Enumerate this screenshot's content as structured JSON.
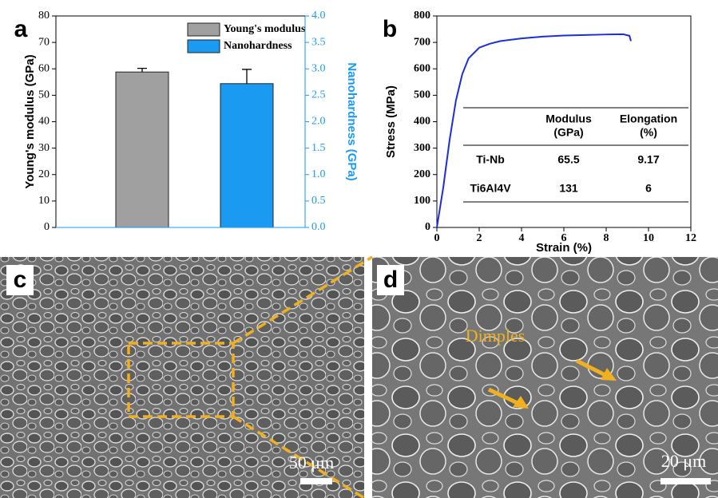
{
  "chart_data": [
    {
      "type": "bar",
      "panel_label": "a",
      "categories": [
        null,
        null
      ],
      "y_label": "Young's modulus (GPa)",
      "y2_label": "Nanohardness (GPa)",
      "y2_color": "#1a9af0",
      "ylim": [
        0,
        80
      ],
      "yticks": [
        0,
        10,
        20,
        30,
        40,
        50,
        60,
        70,
        80
      ],
      "y2lim": [
        0,
        4
      ],
      "y2ticks": [
        {
          "value": 0,
          "label": "0.0"
        },
        {
          "value": 0.5,
          "label": "0.5"
        },
        {
          "value": 1,
          "label": "1.0"
        },
        {
          "value": 1.5,
          "label": "1.5"
        },
        {
          "value": 2,
          "label": "2.0"
        },
        {
          "value": 2.5,
          "label": "2.5"
        },
        {
          "value": 3,
          "label": "3.0"
        },
        {
          "value": 3.5,
          "label": "3.5"
        },
        {
          "value": 4,
          "label": "4.0"
        }
      ],
      "legend": "upper right",
      "series": [
        {
          "name": "Young's modulus",
          "color": "#a0a0a0",
          "values": [
            58.8,
            null
          ],
          "errors": [
            1.4,
            null
          ]
        },
        {
          "name": "Nanohardness",
          "color": "#1a9af0",
          "axis": "y2",
          "values": [
            null,
            2.72
          ],
          "errors": [
            null,
            0.27
          ]
        }
      ]
    },
    {
      "type": "line",
      "panel_label": "b",
      "x_label": "Strain (%)",
      "y_label": "Stress (MPa)",
      "xlim": [
        0,
        12
      ],
      "xticks": [
        0,
        2,
        4,
        6,
        8,
        10,
        12
      ],
      "ylim": [
        0,
        800
      ],
      "yticks": [
        0,
        100,
        200,
        300,
        400,
        500,
        600,
        700,
        800
      ],
      "series": [
        {
          "name": null,
          "color": "#1a2ee0",
          "x": [
            0,
            0.3,
            0.6,
            0.9,
            1.2,
            1.5,
            2,
            2.5,
            3,
            4,
            5,
            6,
            7,
            8,
            8.8,
            9.1,
            9.17
          ],
          "values": [
            0,
            150,
            330,
            480,
            580,
            640,
            680,
            695,
            705,
            715,
            722,
            726,
            728,
            730,
            731,
            725,
            705
          ]
        }
      ],
      "table": {
        "header": [
          [
            "Modulus",
            "(GPa)"
          ],
          [
            "Elongation",
            "(%)"
          ]
        ],
        "rows": [
          [
            "Ti-Nb",
            65.5,
            9.17
          ],
          [
            "Ti6Al4V",
            131,
            6
          ]
        ]
      }
    }
  ],
  "images": [
    {
      "label": "c",
      "scale_bar": "50 μm"
    },
    {
      "label": "d",
      "scale_bar": "20 μm",
      "annotation": "Dimples"
    }
  ]
}
